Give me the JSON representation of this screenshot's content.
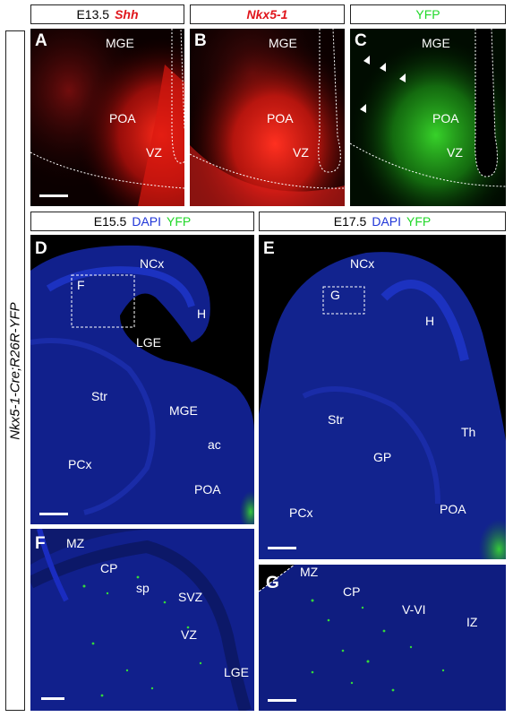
{
  "sidebar": {
    "label": "Nkx5-1-Cre;R26R-YFP"
  },
  "headers": {
    "a_age": "E13.5",
    "a_gene": "Shh",
    "b_gene": "Nkx5-1",
    "c_marker": "YFP",
    "d_age": "E15.5",
    "d_dapi": "DAPI",
    "d_yfp": "YFP",
    "e_age": "E17.5",
    "e_dapi": "DAPI",
    "e_yfp": "YFP"
  },
  "panels": {
    "A": {
      "letter": "A",
      "mge": "MGE",
      "poa": "POA",
      "vz": "VZ"
    },
    "B": {
      "letter": "B",
      "mge": "MGE",
      "poa": "POA",
      "vz": "VZ"
    },
    "C": {
      "letter": "C",
      "mge": "MGE",
      "poa": "POA",
      "vz": "VZ"
    },
    "D": {
      "letter": "D",
      "inset": "F",
      "ncx": "NCx",
      "h": "H",
      "lge": "LGE",
      "str": "Str",
      "mge": "MGE",
      "ac": "ac",
      "pcx": "PCx",
      "poa": "POA"
    },
    "E": {
      "letter": "E",
      "inset": "G",
      "ncx": "NCx",
      "h": "H",
      "str": "Str",
      "th": "Th",
      "gp": "GP",
      "pcx": "PCx",
      "poa": "POA"
    },
    "F": {
      "letter": "F",
      "mz": "MZ",
      "cp": "CP",
      "sp": "sp",
      "svz": "SVZ",
      "vz": "VZ",
      "lge": "LGE"
    },
    "G": {
      "letter": "G",
      "mz": "MZ",
      "cp": "CP",
      "vvi": "V-VI",
      "iz": "IZ"
    }
  },
  "colors": {
    "red": "#e0151b",
    "green": "#22d82a",
    "blue": "#2036d8"
  }
}
